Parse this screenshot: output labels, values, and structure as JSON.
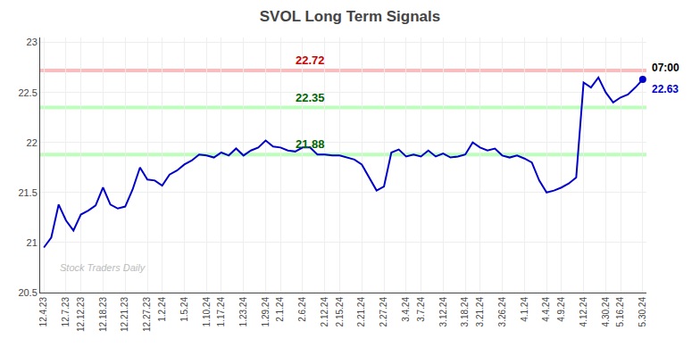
{
  "chart_data": {
    "type": "line",
    "title": "SVOL Long Term Signals",
    "color": "#0000cc",
    "background_color": "#ffffff",
    "grid": true,
    "ylim": [
      20.5,
      23.05
    ],
    "yticks": [
      20.5,
      21,
      21.5,
      22,
      22.5,
      23
    ],
    "categories": [
      "12.4.23",
      null,
      null,
      "12.7.23",
      null,
      "12.12.23",
      null,
      null,
      "12.18.23",
      null,
      null,
      "12.21.23",
      null,
      null,
      "12.27.23",
      null,
      "1.2.24",
      null,
      null,
      "1.5.24",
      null,
      null,
      "1.10.24",
      null,
      "1.17.24",
      null,
      null,
      "1.23.24",
      null,
      null,
      "1.29.24",
      null,
      "2.1.24",
      null,
      null,
      "2.6.24",
      null,
      null,
      "2.12.24",
      null,
      "2.15.24",
      null,
      null,
      "2.21.24",
      null,
      null,
      "2.27.24",
      null,
      null,
      "3.4.24",
      null,
      "3.7.24",
      null,
      null,
      "3.12.24",
      null,
      null,
      "3.18.24",
      null,
      "3.21.24",
      null,
      null,
      "3.26.24",
      null,
      null,
      "4.1.24",
      null,
      null,
      "4.4.24",
      null,
      "4.9.24",
      null,
      null,
      "4.12.24",
      null,
      null,
      "4.30.24",
      null,
      "5.16.24",
      null,
      null,
      "5.30.24"
    ],
    "values": [
      20.95,
      21.05,
      21.38,
      21.22,
      21.12,
      21.28,
      21.32,
      21.37,
      21.55,
      21.38,
      21.34,
      21.36,
      21.53,
      21.75,
      21.63,
      21.62,
      21.57,
      21.68,
      21.72,
      21.78,
      21.82,
      21.88,
      21.87,
      21.85,
      21.9,
      21.87,
      21.94,
      21.87,
      21.92,
      21.95,
      22.02,
      21.96,
      21.95,
      21.92,
      21.91,
      21.95,
      21.95,
      21.88,
      21.88,
      21.87,
      21.87,
      21.85,
      21.83,
      21.78,
      21.65,
      21.52,
      21.56,
      21.9,
      21.93,
      21.86,
      21.88,
      21.86,
      21.92,
      21.86,
      21.89,
      21.85,
      21.86,
      21.88,
      22.0,
      21.95,
      21.92,
      21.94,
      21.87,
      21.85,
      21.87,
      21.84,
      21.8,
      21.62,
      21.5,
      21.52,
      21.55,
      21.59,
      21.65,
      22.6,
      22.55,
      22.65,
      22.5,
      22.4,
      22.45,
      22.48,
      22.55,
      22.63
    ],
    "reference_lines": [
      {
        "value": 22.72,
        "label": "22.72",
        "color": "#ffbbbb",
        "label_color": "#cc0000"
      },
      {
        "value": 22.35,
        "label": "22.35",
        "color": "#bbffbb",
        "label_color": "#006600"
      },
      {
        "value": 21.88,
        "label": "21.88",
        "color": "#bbffbb",
        "label_color": "#006600"
      }
    ],
    "watermark": {
      "text": "Stock Traders Daily",
      "color": "#bbbbbb"
    },
    "annotations": [
      {
        "text": "07:00",
        "color": "#000000"
      },
      {
        "text": "22.63",
        "color": "#0000cc"
      }
    ]
  }
}
